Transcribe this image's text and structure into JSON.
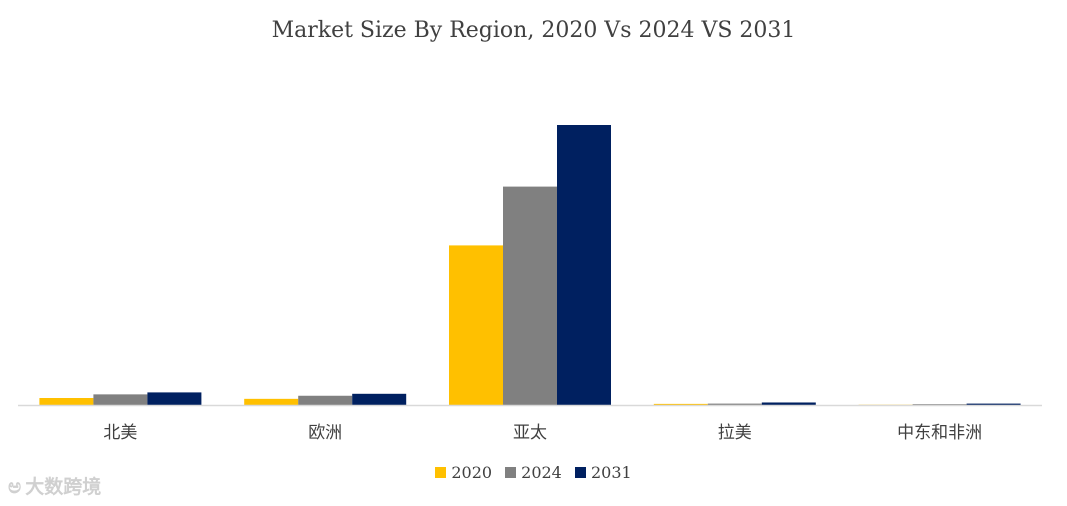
{
  "chart_data": {
    "type": "bar",
    "title": "Market Size By Region, 2020 Vs 2024 VS 2031",
    "categories": [
      "北美",
      "欧洲",
      "亚太",
      "拉美",
      "中东和非洲"
    ],
    "series": [
      {
        "name": "2020",
        "color": "#FFC000",
        "values": [
          2.5,
          2.2,
          57.0,
          0.4,
          0.1
        ]
      },
      {
        "name": "2024",
        "color": "#808080",
        "values": [
          3.8,
          3.3,
          78.0,
          0.5,
          0.3
        ]
      },
      {
        "name": "2031",
        "color": "#002060",
        "values": [
          4.5,
          4.0,
          100.0,
          0.9,
          0.5
        ]
      }
    ],
    "xlabel": "",
    "ylabel": "",
    "ylim": [
      0,
      100
    ],
    "grid": false,
    "legend": "bottom-center"
  },
  "watermark": {
    "text": "大数跨境",
    "icon": "bubble-logo-icon"
  }
}
